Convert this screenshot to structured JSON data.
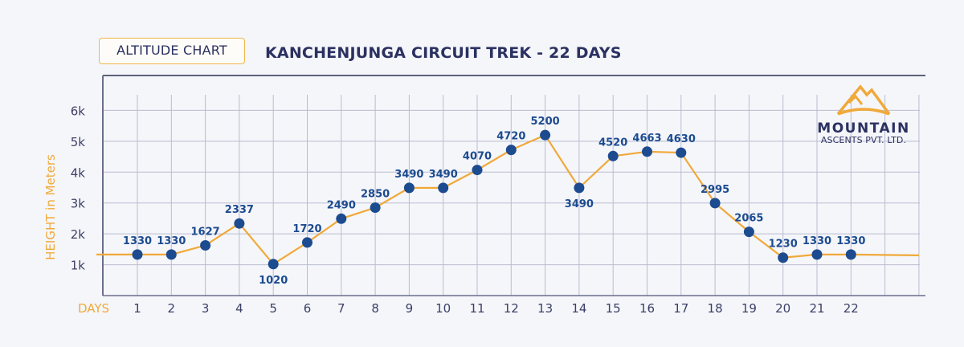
{
  "header": {
    "badge_label": "ALTITUDE CHART",
    "title": "KANCHENJUNGA CIRCUIT TREK - 22 DAYS"
  },
  "logo": {
    "icon": "mountain-icon",
    "name": "MOUNTAIN",
    "subtitle": "ASCENTS PVT. LTD."
  },
  "colors": {
    "background": "#f5f6fa",
    "line": "#f0a93a",
    "marker": "#1c4b8f",
    "label_text": "#1c4b8f",
    "axis_text": "#3c4066",
    "accent": "#f0a93a",
    "grid": "#b9bccf",
    "frame": "#2b3050"
  },
  "chart_data": {
    "type": "line",
    "title": "KANCHENJUNGA CIRCUIT TREK - 22 DAYS",
    "subtitle": "ALTITUDE CHART",
    "xlabel": "DAYS",
    "ylabel": "HEIGHT in Meters",
    "categories": [
      "1",
      "2",
      "3",
      "4",
      "5",
      "6",
      "7",
      "8",
      "9",
      "10",
      "11",
      "12",
      "13",
      "14",
      "15",
      "16",
      "17",
      "18",
      "19",
      "20",
      "21",
      "22"
    ],
    "x": [
      1,
      2,
      3,
      4,
      5,
      6,
      7,
      8,
      9,
      10,
      11,
      12,
      13,
      14,
      15,
      16,
      17,
      18,
      19,
      20,
      21,
      22
    ],
    "values": [
      1330,
      1330,
      1627,
      2337,
      1020,
      1720,
      2490,
      2850,
      3490,
      3490,
      4070,
      4720,
      5200,
      3490,
      4520,
      4663,
      4630,
      2995,
      2065,
      1230,
      1330,
      1330
    ],
    "labels": [
      "1330",
      "1330",
      "1627",
      "2337",
      "1020",
      "1720",
      "2490",
      "2850",
      "3490",
      "3490",
      "4070",
      "4720",
      "5200",
      "3490",
      "4520",
      "4663",
      "4630",
      "2995",
      "2065",
      "1230",
      "1330",
      "1330"
    ],
    "label_below": [
      false,
      false,
      false,
      false,
      true,
      false,
      false,
      false,
      false,
      false,
      false,
      false,
      false,
      true,
      false,
      false,
      false,
      false,
      false,
      false,
      false,
      false
    ],
    "yticks": [
      1000,
      2000,
      3000,
      4000,
      5000,
      6000
    ],
    "ytick_labels": [
      "1k",
      "2k",
      "3k",
      "4k",
      "5k",
      "6k"
    ],
    "ylim": [
      0,
      7000
    ],
    "grid": true,
    "legend": null
  }
}
